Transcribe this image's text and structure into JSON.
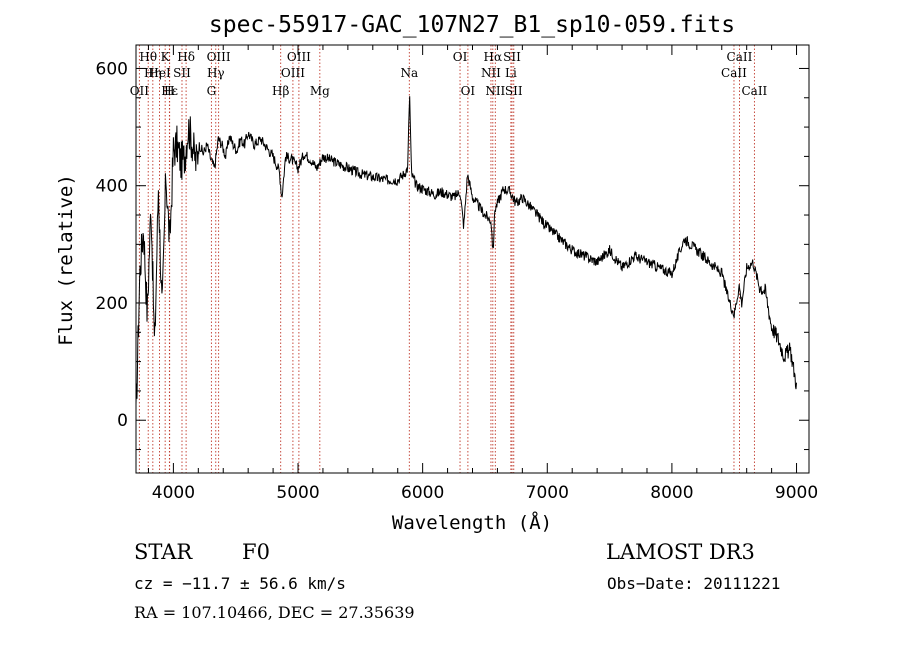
{
  "chart_data": {
    "type": "line",
    "title": "spec-55917-GAC_107N27_B1_sp10-059.fits",
    "xlabel": "Wavelength (Å)",
    "ylabel": "Flux (relative)",
    "xlim": [
      3700,
      9100
    ],
    "ylim": [
      -90,
      640
    ],
    "xticks": [
      4000,
      5000,
      6000,
      7000,
      8000,
      9000
    ],
    "yticks": [
      0,
      200,
      400,
      600
    ],
    "series": [
      {
        "name": "flux",
        "x": [
          3700,
          3730,
          3760,
          3790,
          3820,
          3850,
          3880,
          3910,
          3940,
          3970,
          4000,
          4030,
          4060,
          4090,
          4120,
          4150,
          4180,
          4210,
          4240,
          4270,
          4300,
          4330,
          4360,
          4390,
          4420,
          4450,
          4480,
          4510,
          4540,
          4570,
          4600,
          4650,
          4700,
          4750,
          4800,
          4850,
          4870,
          4900,
          4950,
          5000,
          5050,
          5100,
          5150,
          5200,
          5300,
          5400,
          5500,
          5600,
          5700,
          5800,
          5850,
          5880,
          5895,
          5910,
          5950,
          6000,
          6050,
          6100,
          6150,
          6200,
          6250,
          6300,
          6330,
          6360,
          6400,
          6450,
          6500,
          6550,
          6565,
          6580,
          6600,
          6650,
          6700,
          6750,
          6800,
          6900,
          7000,
          7100,
          7200,
          7300,
          7400,
          7500,
          7600,
          7700,
          7800,
          7900,
          8000,
          8100,
          8200,
          8300,
          8400,
          8450,
          8500,
          8540,
          8560,
          8600,
          8650,
          8700,
          8750,
          8800,
          8850,
          8900,
          8950,
          9000
        ],
        "values": [
          0,
          250,
          330,
          180,
          370,
          120,
          400,
          180,
          420,
          300,
          460,
          470,
          440,
          450,
          500,
          475,
          440,
          470,
          455,
          470,
          445,
          430,
          480,
          470,
          450,
          485,
          470,
          460,
          480,
          470,
          490,
          470,
          480,
          465,
          450,
          425,
          380,
          450,
          445,
          430,
          455,
          445,
          430,
          450,
          440,
          430,
          420,
          415,
          410,
          410,
          420,
          430,
          560,
          420,
          400,
          395,
          390,
          385,
          390,
          385,
          380,
          390,
          330,
          420,
          380,
          365,
          350,
          340,
          285,
          360,
          370,
          395,
          390,
          370,
          380,
          355,
          330,
          310,
          290,
          280,
          270,
          290,
          260,
          280,
          270,
          260,
          250,
          310,
          290,
          270,
          250,
          210,
          180,
          230,
          200,
          260,
          270,
          230,
          220,
          160,
          140,
          110,
          120,
          60
        ]
      }
    ],
    "line_labels": [
      {
        "text": "Hθ",
        "x": 3798,
        "row": 1
      },
      {
        "text": "OII",
        "x": 3727,
        "row": 3
      },
      {
        "text": "Hη",
        "x": 3835,
        "row": 2
      },
      {
        "text": "HeI",
        "x": 3889,
        "row": 2
      },
      {
        "text": "K",
        "x": 3934,
        "row": 1
      },
      {
        "text": "SII",
        "x": 4069,
        "row": 2
      },
      {
        "text": "H",
        "x": 3968,
        "row": 3
      },
      {
        "text": "Hε",
        "x": 3970,
        "row": 3
      },
      {
        "text": "Hδ",
        "x": 4102,
        "row": 1
      },
      {
        "text": "OIII",
        "x": 4363,
        "row": 1
      },
      {
        "text": "Hγ",
        "x": 4340,
        "row": 2
      },
      {
        "text": "G",
        "x": 4305,
        "row": 3
      },
      {
        "text": "Hβ",
        "x": 4861,
        "row": 3
      },
      {
        "text": "OIII",
        "x": 5007,
        "row": 1
      },
      {
        "text": "OIII",
        "x": 4959,
        "row": 2
      },
      {
        "text": "Mg",
        "x": 5175,
        "row": 3
      },
      {
        "text": "Na",
        "x": 5893,
        "row": 2
      },
      {
        "text": "OI",
        "x": 6300,
        "row": 1
      },
      {
        "text": "OI",
        "x": 6363,
        "row": 3
      },
      {
        "text": "Hα",
        "x": 6563,
        "row": 1
      },
      {
        "text": "NII",
        "x": 6548,
        "row": 2
      },
      {
        "text": "NII",
        "x": 6583,
        "row": 3
      },
      {
        "text": "SII",
        "x": 6717,
        "row": 1
      },
      {
        "text": "Li",
        "x": 6708,
        "row": 2
      },
      {
        "text": "SII",
        "x": 6731,
        "row": 3
      },
      {
        "text": "CaII",
        "x": 8542,
        "row": 1
      },
      {
        "text": "CaII",
        "x": 8498,
        "row": 2
      },
      {
        "text": "CaII",
        "x": 8662,
        "row": 3
      }
    ],
    "line_markers": [
      3727,
      3798,
      3835,
      3889,
      3934,
      3968,
      3970,
      4069,
      4102,
      4305,
      4340,
      4363,
      4861,
      4959,
      5007,
      5175,
      5893,
      6300,
      6363,
      6548,
      6563,
      6583,
      6708,
      6717,
      6731,
      8498,
      8542,
      8662
    ]
  },
  "info": {
    "class_label": "STAR",
    "subclass": "F0",
    "survey": "LAMOST DR3",
    "cz": "cz = −11.7 ± 56.6 km/s",
    "obs_date": "Obs−Date: 20111221",
    "coords": "RA = 107.10466, DEC =  27.35639"
  },
  "colors": {
    "marker": "#c0392b",
    "line": "#000000"
  }
}
